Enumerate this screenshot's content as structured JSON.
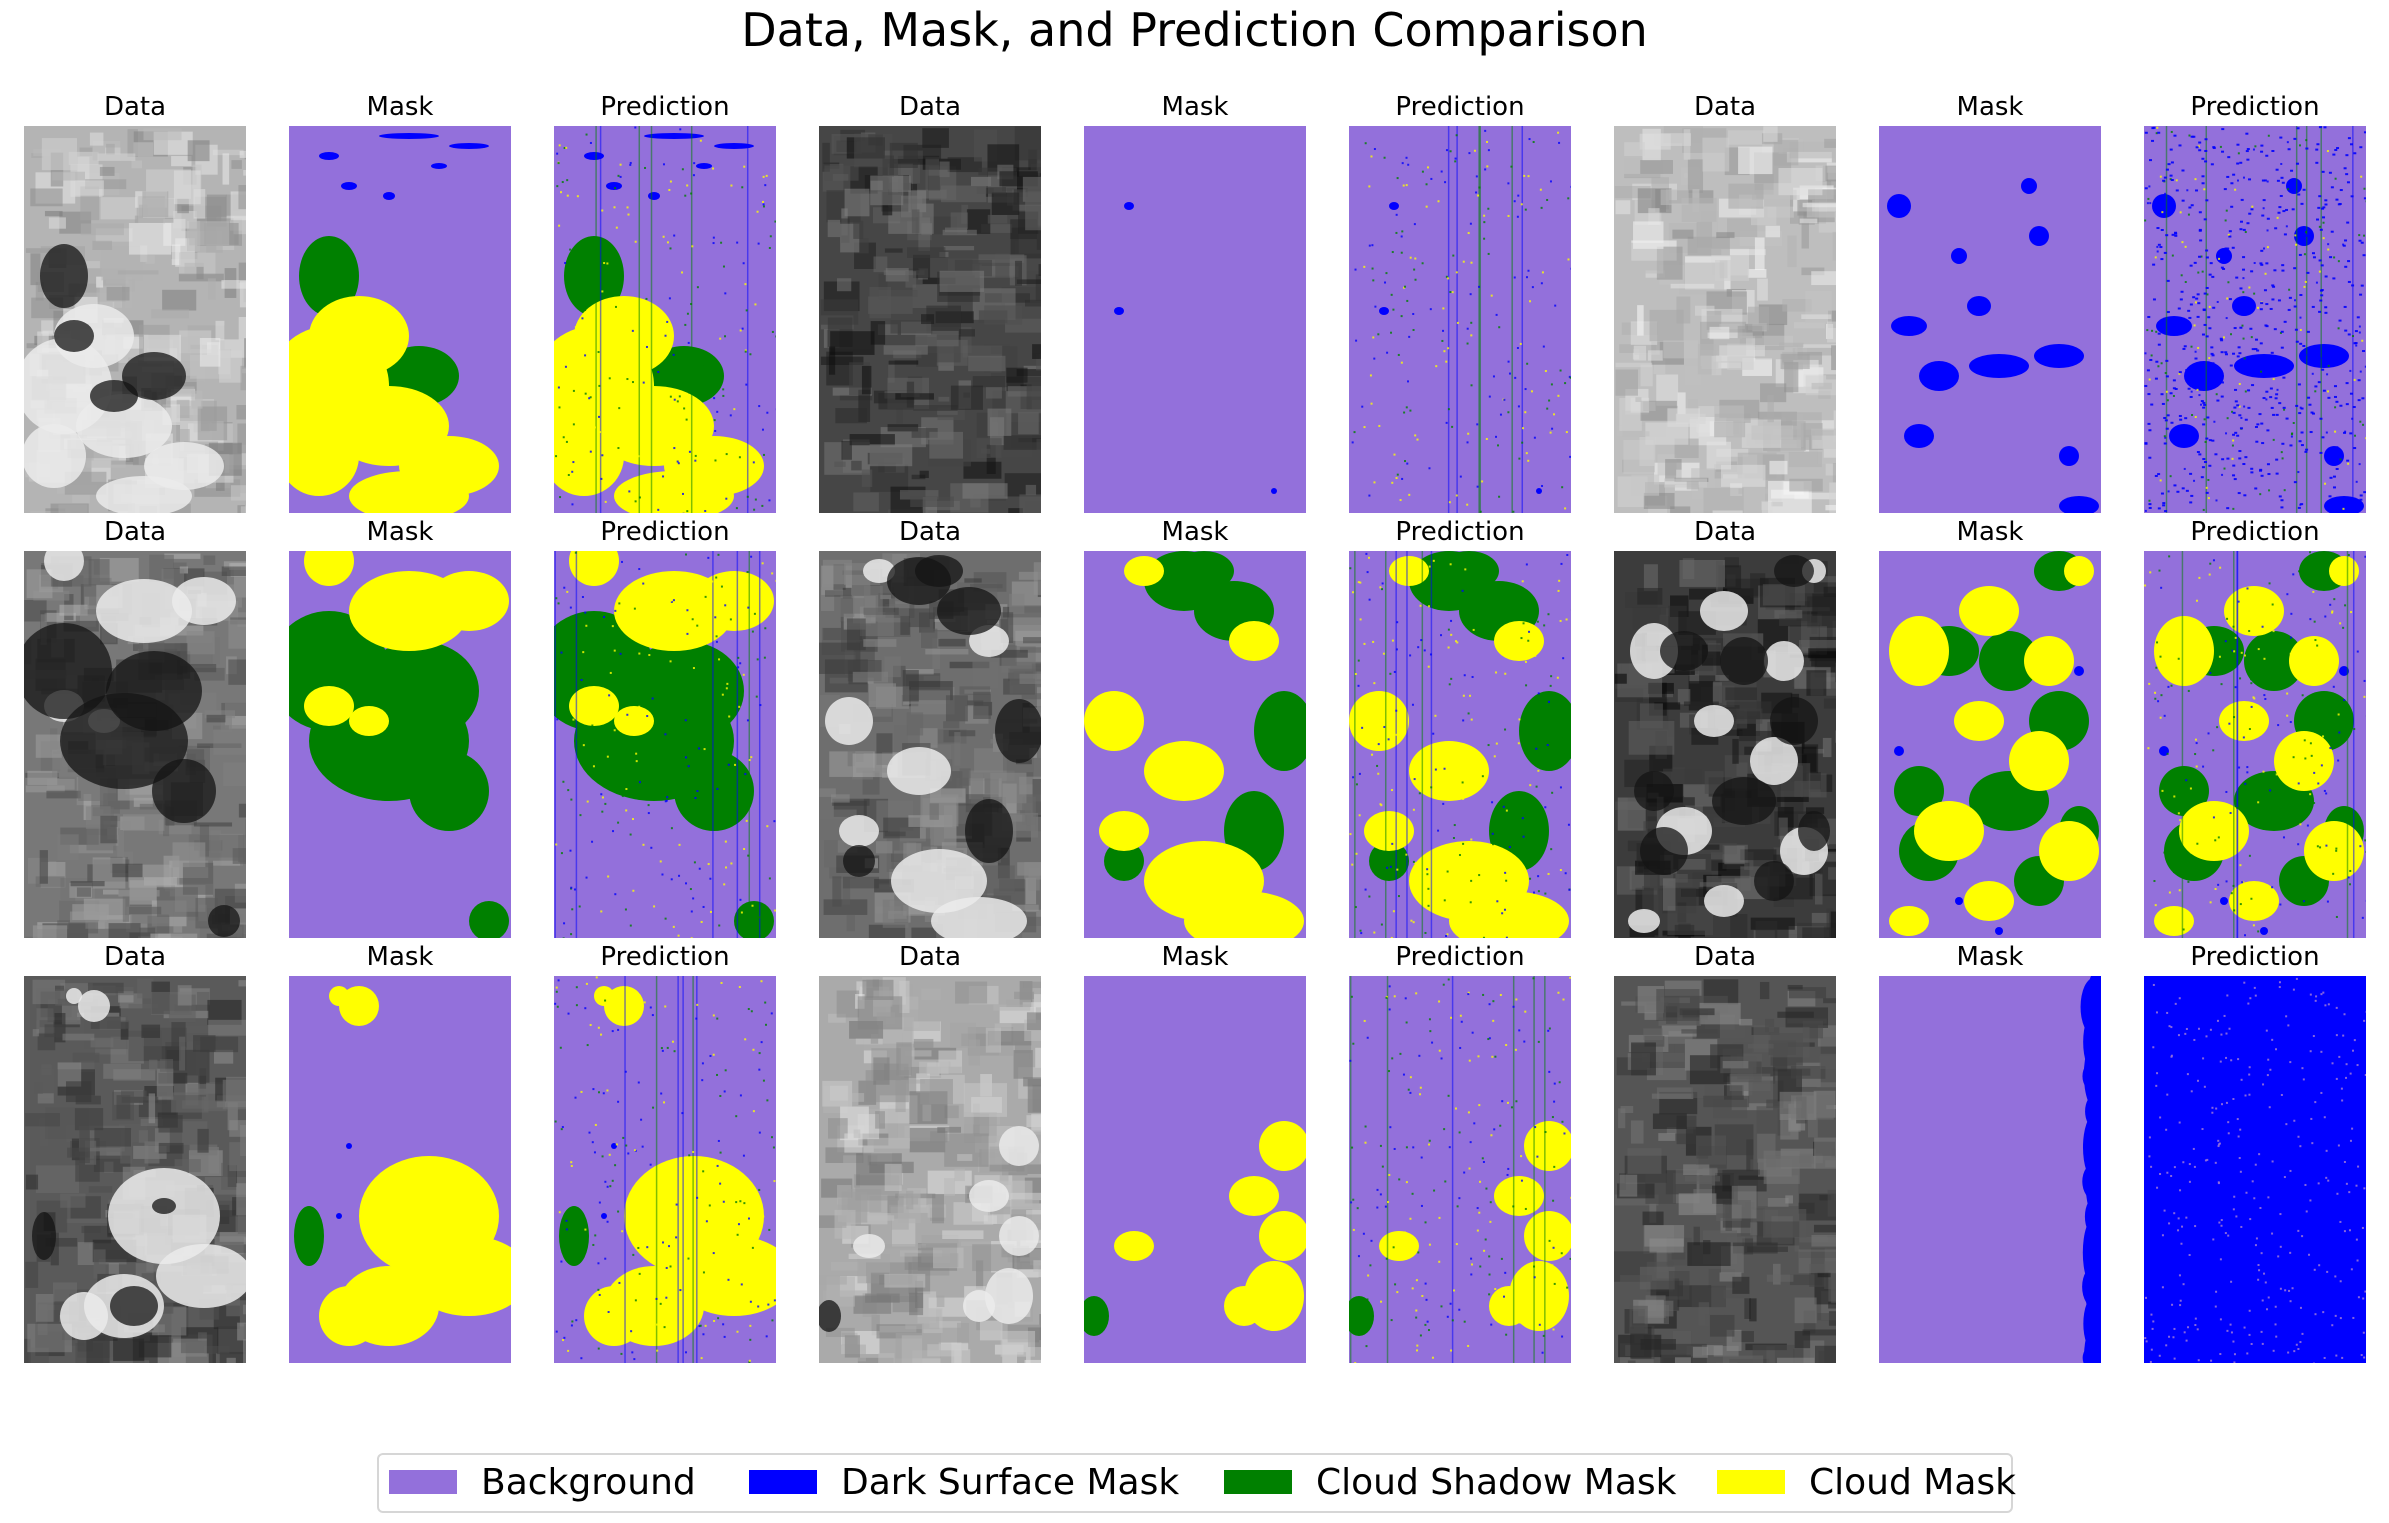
{
  "figure": {
    "title": "Data, Mask, and Prediction Comparison"
  },
  "panel_titles": {
    "data": "Data",
    "mask": "Mask",
    "prediction": "Prediction"
  },
  "colors": {
    "background": "#9370DB",
    "dark_surface": "#0000FF",
    "cloud_shadow": "#008000",
    "cloud": "#FFFF00"
  },
  "legend": {
    "items": [
      {
        "label": "Background",
        "color": "#9370DB"
      },
      {
        "label": "Dark Surface Mask",
        "color": "#0000FF"
      },
      {
        "label": "Cloud Shadow Mask",
        "color": "#008000"
      },
      {
        "label": "Cloud Mask",
        "color": "#FFFF00"
      }
    ]
  },
  "grid": {
    "rows": 3,
    "samples_per_row": 3,
    "panels_per_sample": [
      "data",
      "mask",
      "prediction"
    ]
  }
}
